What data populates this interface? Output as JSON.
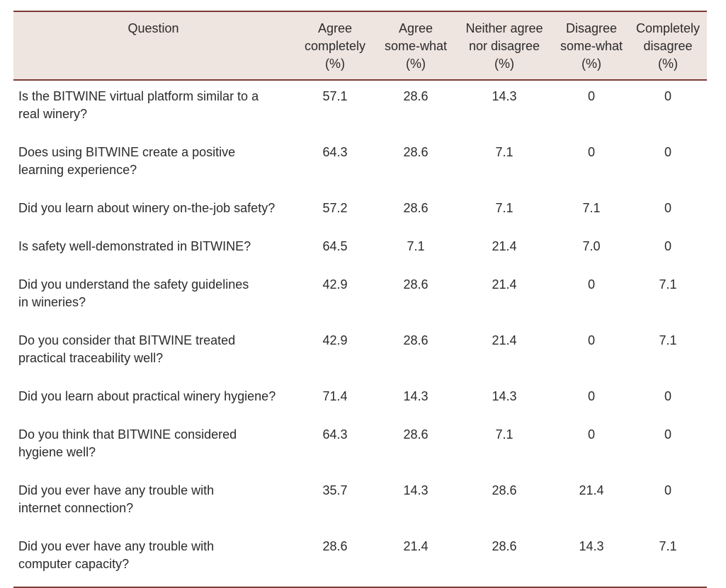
{
  "table": {
    "headers": [
      [
        "Question"
      ],
      [
        "Agree",
        "completely",
        "(%)"
      ],
      [
        "Agree",
        "some-what",
        "(%)"
      ],
      [
        "Neither agree",
        "nor disagree",
        "(%)"
      ],
      [
        "Disagree",
        "some-what",
        "(%)"
      ],
      [
        "Completely",
        "disagree",
        "(%)"
      ]
    ],
    "rows": [
      {
        "q": [
          "Is the BITWINE virtual platform similar to a",
          "real winery?"
        ],
        "v": [
          "57.1",
          "28.6",
          "14.3",
          "0",
          "0"
        ]
      },
      {
        "q": [
          "Does using BITWINE create a positive",
          "learning experience?"
        ],
        "v": [
          "64.3",
          "28.6",
          "7.1",
          "0",
          "0"
        ]
      },
      {
        "q": [
          "Did you learn about winery on-the-job safety?"
        ],
        "v": [
          "57.2",
          "28.6",
          "7.1",
          "7.1",
          "0"
        ]
      },
      {
        "q": [
          "Is safety well-demonstrated in BITWINE?"
        ],
        "v": [
          "64.5",
          "7.1",
          "21.4",
          "7.0",
          "0"
        ]
      },
      {
        "q": [
          "Did you understand the safety guidelines",
          "in wineries?"
        ],
        "v": [
          "42.9",
          "28.6",
          "21.4",
          "0",
          "7.1"
        ]
      },
      {
        "q": [
          "Do you consider that BITWINE treated",
          "practical traceability well?"
        ],
        "v": [
          "42.9",
          "28.6",
          "21.4",
          "0",
          "7.1"
        ]
      },
      {
        "q": [
          "Did you learn about practical winery hygiene?"
        ],
        "v": [
          "71.4",
          "14.3",
          "14.3",
          "0",
          "0"
        ]
      },
      {
        "q": [
          "Do you think that BITWINE considered",
          "hygiene well?"
        ],
        "v": [
          "64.3",
          "28.6",
          "7.1",
          "0",
          "0"
        ]
      },
      {
        "q": [
          "Did you ever have any trouble with",
          "internet connection?"
        ],
        "v": [
          "35.7",
          "14.3",
          "28.6",
          "21.4",
          "0"
        ]
      },
      {
        "q": [
          "Did you ever have any trouble with",
          "computer capacity?"
        ],
        "v": [
          "28.6",
          "21.4",
          "28.6",
          "14.3",
          "7.1"
        ]
      }
    ]
  }
}
